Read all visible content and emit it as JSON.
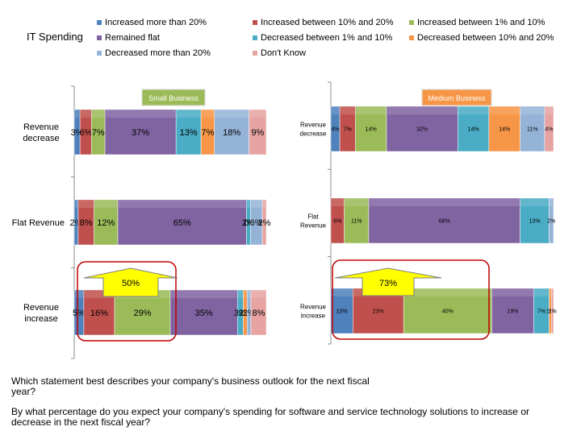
{
  "legend": {
    "title": "IT Spending",
    "items": [
      {
        "label": "Increased more than 20%",
        "color": "#4f81bd"
      },
      {
        "label": "Increased between 10% and 20%",
        "color": "#c0504d"
      },
      {
        "label": "Increased between 1% and 10%",
        "color": "#9bbb59"
      },
      {
        "label": "Remained flat",
        "color": "#8064a2"
      },
      {
        "label": "Decreased between 1% and 10%",
        "color": "#4bacc6"
      },
      {
        "label": "Decreased between 10% and 20%",
        "color": "#f79646"
      },
      {
        "label": "Decreased more than 20%",
        "color": "#95b3d7"
      },
      {
        "label": "Don't Know",
        "color": "#e6a3a2"
      }
    ]
  },
  "questions": {
    "q1": "Which statement best describes your company's business outlook for the next fiscal year?",
    "q2": "By what percentage do you expect your company's spending for software and service technology solutions to increase or decrease in the next fiscal year?"
  },
  "chart_data": [
    {
      "type": "bar",
      "title": "Small Business",
      "title_color": "#9bbb59",
      "categories": [
        "Revenue decrease",
        "Flat Revenue",
        "Revenue increase"
      ],
      "series": [
        {
          "name": "Increased more than 20%",
          "values": [
            3,
            2,
            5
          ],
          "labels": [
            "3%",
            "2%",
            "5%"
          ]
        },
        {
          "name": "Increased between 10% and 20%",
          "values": [
            6,
            8,
            16
          ],
          "labels": [
            "6%",
            "8%",
            "16%"
          ]
        },
        {
          "name": "Increased between 1% and 10%",
          "values": [
            7,
            12,
            29
          ],
          "labels": [
            "7%",
            "12%",
            "29%"
          ]
        },
        {
          "name": "Remained flat",
          "values": [
            37,
            65,
            35
          ],
          "labels": [
            "37%",
            "65%",
            "35%"
          ]
        },
        {
          "name": "Decreased between 1% and 10%",
          "values": [
            13,
            2,
            3
          ],
          "labels": [
            "13%",
            "2%",
            "3%"
          ]
        },
        {
          "name": "Decreased between 10% and 20%",
          "values": [
            7,
            0,
            2
          ],
          "labels": [
            "7%",
            "0%",
            "2%"
          ]
        },
        {
          "name": "Decreased more than 20%",
          "values": [
            18,
            6,
            2
          ],
          "labels": [
            "18%",
            "6%",
            "2%"
          ]
        },
        {
          "name": "Don't Know",
          "values": [
            9,
            2,
            8
          ],
          "labels": [
            "9%",
            "2%",
            "8%"
          ]
        }
      ],
      "highlight": {
        "category": "Revenue increase",
        "label": "50%"
      }
    },
    {
      "type": "bar",
      "title": "Medium Business",
      "title_color": "#f79646",
      "categories": [
        "Revenue decrease",
        "Flat Revenue",
        "Revenue increase"
      ],
      "series": [
        {
          "name": "Increased more than 20%",
          "values": [
            4,
            0,
            10
          ],
          "labels": [
            "4%",
            "",
            "10%"
          ]
        },
        {
          "name": "Increased between 10% and 20%",
          "values": [
            7,
            6,
            23
          ],
          "labels": [
            "7%",
            "6%",
            "23%"
          ]
        },
        {
          "name": "Increased between 1% and 10%",
          "values": [
            14,
            11,
            40
          ],
          "labels": [
            "14%",
            "11%",
            "40%"
          ]
        },
        {
          "name": "Remained flat",
          "values": [
            32,
            68,
            19
          ],
          "labels": [
            "32%",
            "68%",
            "19%"
          ]
        },
        {
          "name": "Decreased between 1% and 10%",
          "values": [
            14,
            13,
            7
          ],
          "labels": [
            "14%",
            "13%",
            "7%"
          ]
        },
        {
          "name": "Decreased between 10% and 20%",
          "values": [
            14,
            0,
            1
          ],
          "labels": [
            "14%",
            "",
            "1%"
          ]
        },
        {
          "name": "Decreased more than 20%",
          "values": [
            11,
            2,
            0
          ],
          "labels": [
            "11%",
            "2%",
            ""
          ]
        },
        {
          "name": "Don't Know",
          "values": [
            4,
            0,
            1
          ],
          "labels": [
            "4%",
            "",
            "1%"
          ]
        }
      ],
      "highlight": {
        "category": "Revenue increase",
        "label": "73%"
      }
    }
  ]
}
